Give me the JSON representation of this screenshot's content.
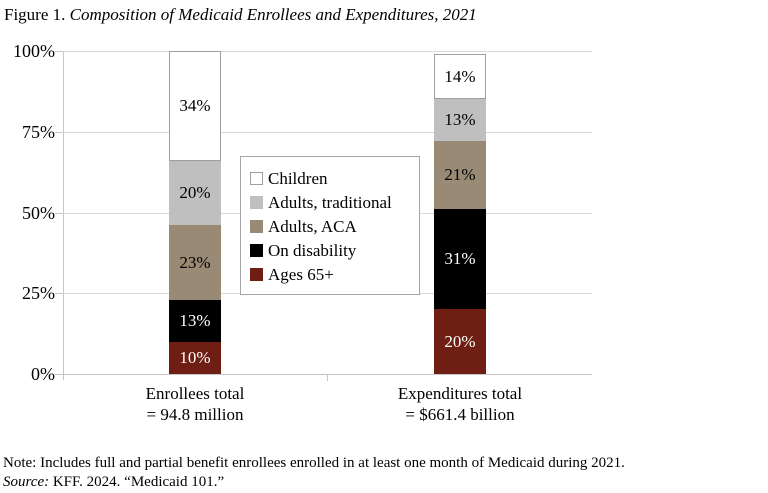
{
  "figure": {
    "title_prefix": "Figure 1.",
    "title_italic": "Composition of Medicaid Enrollees and Expenditures, 2021"
  },
  "chart_data": {
    "type": "bar",
    "stacked": true,
    "orientation": "vertical",
    "unit": "percent",
    "categories": [
      "Enrollees total",
      "Expenditures total"
    ],
    "category_sublabels": [
      "= 94.8 million",
      "= $661.4 billion"
    ],
    "series": [
      {
        "name": "Children",
        "values": [
          34,
          14
        ],
        "color": "#ffffff",
        "label_color": "#000000",
        "outline": "#9e9e9e"
      },
      {
        "name": "Adults, traditional",
        "values": [
          20,
          13
        ],
        "color": "#bfbfbf",
        "label_color": "#000000",
        "outline": null
      },
      {
        "name": "Adults, ACA",
        "values": [
          23,
          21
        ],
        "color": "#998a75",
        "label_color": "#000000",
        "outline": null
      },
      {
        "name": "On disability",
        "values": [
          13,
          31
        ],
        "color": "#000000",
        "label_color": "#ffffff",
        "outline": null
      },
      {
        "name": "Ages 65+",
        "values": [
          10,
          20
        ],
        "color": "#6e1e12",
        "label_color": "#ffffff",
        "outline": null
      }
    ],
    "data_label_format": "{value}%",
    "y_axis": {
      "min": 0,
      "max": 100,
      "tick_labels_top_to_bottom": [
        "100%",
        "75%",
        "50%",
        "25%",
        "0%"
      ],
      "gridlines": true
    },
    "legend_position": "center-of-plot",
    "x_axis_line": true
  },
  "footnote": {
    "note": "Note: Includes full and partial benefit enrollees enrolled in at least one month of Medicaid during 2021.",
    "source_label": "Source:",
    "source_text": "KFF. 2024. “Medicaid 101.”"
  },
  "colors": {
    "gridline": "#d9d9d9",
    "axis": "#c6c6c6",
    "legend_border": "#a6a6a6",
    "background": "#ffffff"
  }
}
